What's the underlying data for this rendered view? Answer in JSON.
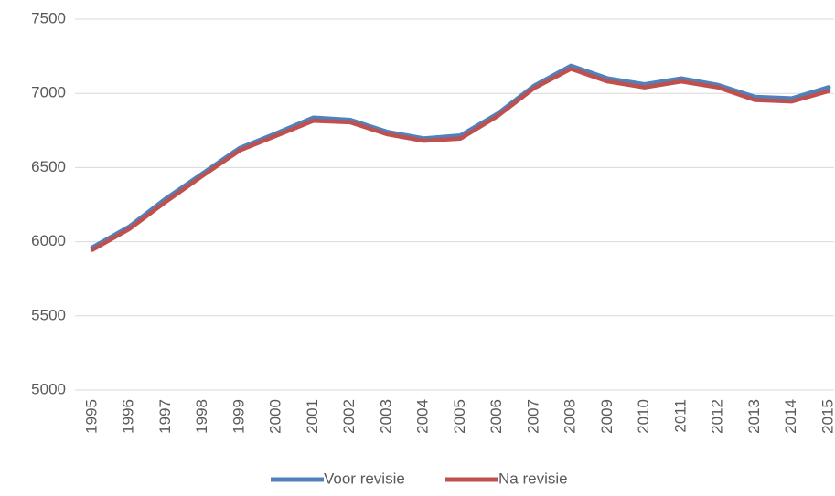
{
  "chart_data": {
    "type": "line",
    "categories": [
      "1995",
      "1996",
      "1997",
      "1998",
      "1999",
      "2000",
      "2001",
      "2002",
      "2003",
      "2004",
      "2005",
      "2006",
      "2007",
      "2008",
      "2009",
      "2010",
      "2011",
      "2012",
      "2013",
      "2014",
      "2015"
    ],
    "series": [
      {
        "name": "Voor revisie",
        "color": "#4f81bd",
        "values": [
          5960,
          6100,
          6290,
          6460,
          6630,
          6730,
          6835,
          6820,
          6740,
          6695,
          6715,
          6860,
          7050,
          7185,
          7100,
          7060,
          7100,
          7055,
          6975,
          6965,
          7040
        ]
      },
      {
        "name": "Na revisie",
        "color": "#c0504d",
        "values": [
          5945,
          6085,
          6270,
          6445,
          6615,
          6715,
          6815,
          6805,
          6725,
          6680,
          6695,
          6845,
          7035,
          7165,
          7080,
          7040,
          7080,
          7040,
          6955,
          6945,
          7015
        ]
      }
    ],
    "ylim": [
      5000,
      7500
    ],
    "yticks": [
      5000,
      5500,
      6000,
      6500,
      7000,
      7500
    ],
    "grid": true,
    "legend": "bottom"
  }
}
